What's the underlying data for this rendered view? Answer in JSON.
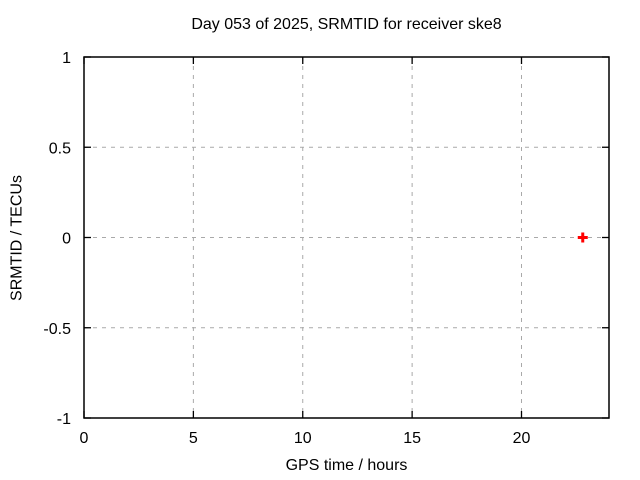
{
  "chart_data": {
    "type": "scatter",
    "title": "Day 053 of 2025, SRMTID for receiver ske8",
    "xlabel": "GPS time / hours",
    "ylabel": "SRMTID / TECUs",
    "xlim": [
      0,
      24
    ],
    "ylim": [
      -1,
      1
    ],
    "xticks": [
      0,
      5,
      10,
      15,
      20
    ],
    "yticks": [
      -1,
      -0.5,
      0,
      0.5,
      1
    ],
    "grid": true,
    "grid_style": "dashed",
    "legend": "none",
    "series": [
      {
        "name": "SRMTID",
        "marker": "plus",
        "color": "#ff0000",
        "points": [
          {
            "x": 22.8,
            "y": 0.0
          }
        ]
      }
    ],
    "colors": {
      "background": "#ffffff",
      "axis": "#000000",
      "grid": "#a9a9a9",
      "text": "#000000"
    }
  }
}
